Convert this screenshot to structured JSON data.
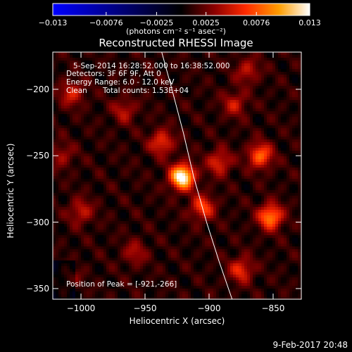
{
  "chart_data": {
    "type": "heatmap",
    "title": "Reconstructed RHESSI Image",
    "xlabel": "Heliocentric X (arcsec)",
    "ylabel": "Heliocentric Y (arcsec)",
    "xlim": [
      -1022,
      -828
    ],
    "ylim": [
      -358,
      -172
    ],
    "xticks": [
      -1000,
      -950,
      -900,
      -850
    ],
    "xtick_labels": [
      "−1000",
      "−950",
      "−900",
      "−850"
    ],
    "yticks": [
      -200,
      -250,
      -300,
      -350
    ],
    "ytick_labels": [
      "−200",
      "−250",
      "−300",
      "−350"
    ],
    "colorbar": {
      "range": [
        -0.013,
        0.013
      ],
      "ticks": [
        -0.013,
        -0.0076,
        -0.0025,
        0.0025,
        0.0076,
        0.013
      ],
      "tick_labels": [
        "−0.013",
        "−0.0076",
        "−0.0025",
        "0.0025",
        "0.0076",
        "0.013"
      ],
      "units_label": "(photons cm⁻² s⁻¹ asec⁻²)",
      "colormap": "blue-black-red-yellow-white",
      "colors": [
        "#0000ff",
        "#000000",
        "#8c0000",
        "#ff2a00",
        "#ff9d00",
        "#ffffff"
      ]
    },
    "annotations": {
      "time_range": "5-Sep-2014 16:28:52.000 to 16:38:52.000",
      "detectors": "Detectors: 3F 6F 9F, Att 0",
      "energy": "Energy Range: 6.0 - 12.0 keV",
      "method": "Clean",
      "counts": "Total counts: 1.53E+04",
      "peak": "Position of Peak = [-921,-266]"
    },
    "peak_position": [
      -921,
      -266
    ],
    "sources": [
      {
        "x": -921,
        "y": -266,
        "intensity": 0.013
      },
      {
        "x": -860,
        "y": -250,
        "intensity": 0.0072
      },
      {
        "x": -852,
        "y": -296,
        "intensity": 0.0085
      },
      {
        "x": -937,
        "y": -240,
        "intensity": 0.0055
      },
      {
        "x": -892,
        "y": -255,
        "intensity": 0.005
      },
      {
        "x": -905,
        "y": -289,
        "intensity": 0.006
      },
      {
        "x": -875,
        "y": -336,
        "intensity": 0.0052
      },
      {
        "x": -1007,
        "y": -203,
        "intensity": 0.0045
      },
      {
        "x": -880,
        "y": -211,
        "intensity": 0.004
      },
      {
        "x": -1000,
        "y": -292,
        "intensity": 0.004
      },
      {
        "x": -958,
        "y": -323,
        "intensity": 0.0032
      },
      {
        "x": -966,
        "y": -216,
        "intensity": 0.0035
      },
      {
        "x": -870,
        "y": -186,
        "intensity": 0.0038
      },
      {
        "x": -1010,
        "y": -343,
        "intensity": 0.0028
      },
      {
        "x": -1015,
        "y": -250,
        "intensity": 0.003
      }
    ],
    "limb_curve": [
      [
        -937,
        -172
      ],
      [
        -929,
        -200
      ],
      [
        -920,
        -233
      ],
      [
        -912,
        -266
      ],
      [
        -902,
        -300
      ],
      [
        -892,
        -330
      ],
      [
        -882,
        -358
      ]
    ]
  },
  "footer_date": "9-Feb-2017 20:48",
  "colors": {
    "background": "#000000",
    "text": "#ffffff",
    "limb": "#ffffff"
  }
}
